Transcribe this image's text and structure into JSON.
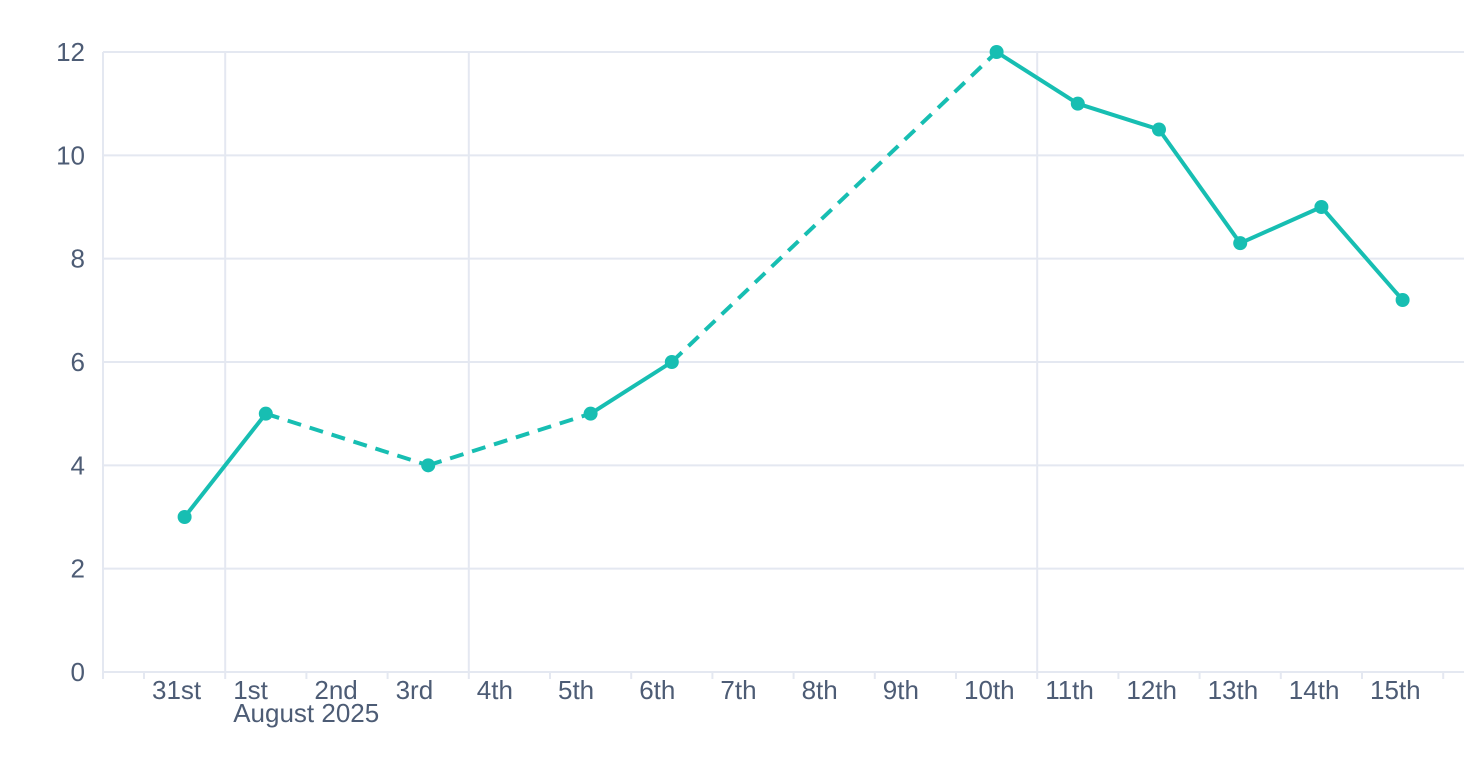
{
  "chart": {
    "background": "#ffffff",
    "accent_color": "#17beb2",
    "grid_color": "#e4e8f1",
    "axis_color": "#e4e8f1",
    "label_color": "#4d5c75"
  },
  "chart_data": {
    "type": "line",
    "title": "",
    "categories": [
      "31st",
      "1st",
      "2nd",
      "3rd",
      "4th",
      "5th",
      "6th",
      "7th",
      "8th",
      "9th",
      "10th",
      "11th",
      "12th",
      "13th",
      "14th",
      "15th"
    ],
    "x_axis_context": "August 2025",
    "x_axis_context_index": 1,
    "values": [
      3,
      5,
      null,
      4,
      null,
      5,
      6,
      null,
      null,
      null,
      12,
      11,
      10.5,
      8.3,
      9,
      7.2
    ],
    "y_ticks": [
      0,
      2,
      4,
      6,
      8,
      10,
      12
    ],
    "ylim": [
      0,
      12
    ],
    "grid": true,
    "legend": "none",
    "line_style_note": "solid between adjacent days, dashed across gaps with missing data",
    "major_vertical_gridline_boundaries": [
      1,
      4,
      11
    ]
  }
}
